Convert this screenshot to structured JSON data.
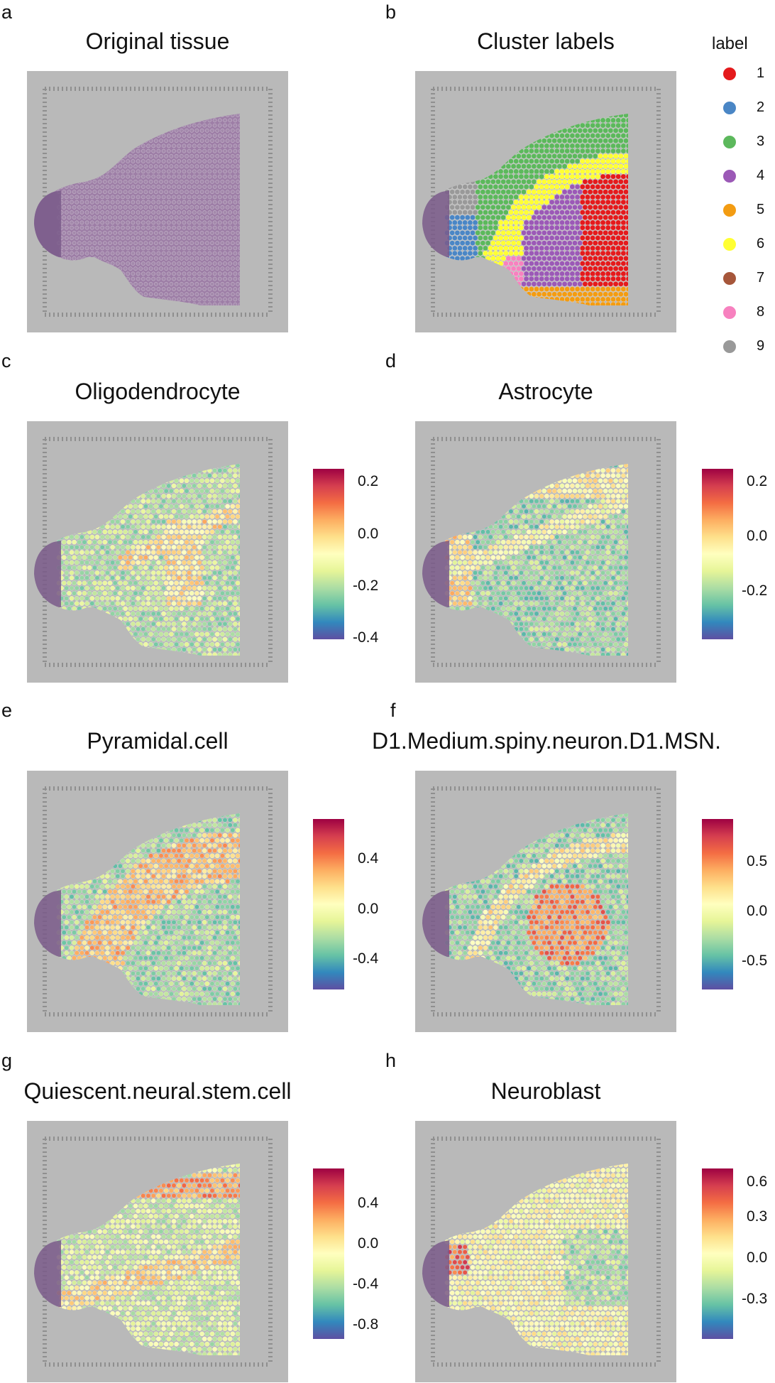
{
  "panels": [
    {
      "letter": "a",
      "title": "Original tissue"
    },
    {
      "letter": "b",
      "title": "Cluster labels"
    },
    {
      "letter": "c",
      "title": "Oligodendrocyte",
      "ticks": [
        "0.2",
        "0.0",
        "-0.2",
        "-0.4"
      ]
    },
    {
      "letter": "d",
      "title": "Astrocyte",
      "ticks": [
        "0.2",
        "0.0",
        "-0.2"
      ]
    },
    {
      "letter": "e",
      "title": "Pyramidal.cell",
      "ticks": [
        "0.4",
        "0.0",
        "-0.4"
      ]
    },
    {
      "letter": "f",
      "title": "D1.Medium.spiny.neuron.D1.MSN.",
      "ticks": [
        "0.5",
        "0.0",
        "-0.5"
      ]
    },
    {
      "letter": "g",
      "title": "Quiescent.neural.stem.cell",
      "ticks": [
        "0.4",
        "0.0",
        "-0.4",
        "-0.8"
      ]
    },
    {
      "letter": "h",
      "title": "Neuroblast",
      "ticks": [
        "0.6",
        "0.3",
        "0.0",
        "-0.3"
      ]
    }
  ],
  "legend": {
    "title": "label",
    "items": [
      {
        "label": "1",
        "color": "#e41a1c"
      },
      {
        "label": "2",
        "color": "#4a86c5"
      },
      {
        "label": "3",
        "color": "#5cb85c"
      },
      {
        "label": "4",
        "color": "#9b59b6"
      },
      {
        "label": "5",
        "color": "#f39c12"
      },
      {
        "label": "6",
        "color": "#ffff33"
      },
      {
        "label": "7",
        "color": "#a6563a"
      },
      {
        "label": "8",
        "color": "#f781bf"
      },
      {
        "label": "9",
        "color": "#999999"
      }
    ]
  },
  "colors": {
    "slide_background": "#b9b9b9",
    "tissue_hue": "#9d7ea6",
    "colorscale": [
      "#5e4fa2",
      "#3288bd",
      "#66c2a5",
      "#abdda4",
      "#e6f598",
      "#ffffbf",
      "#fee08b",
      "#fdae61",
      "#f46d43",
      "#d53e4f",
      "#9e0142"
    ]
  }
}
